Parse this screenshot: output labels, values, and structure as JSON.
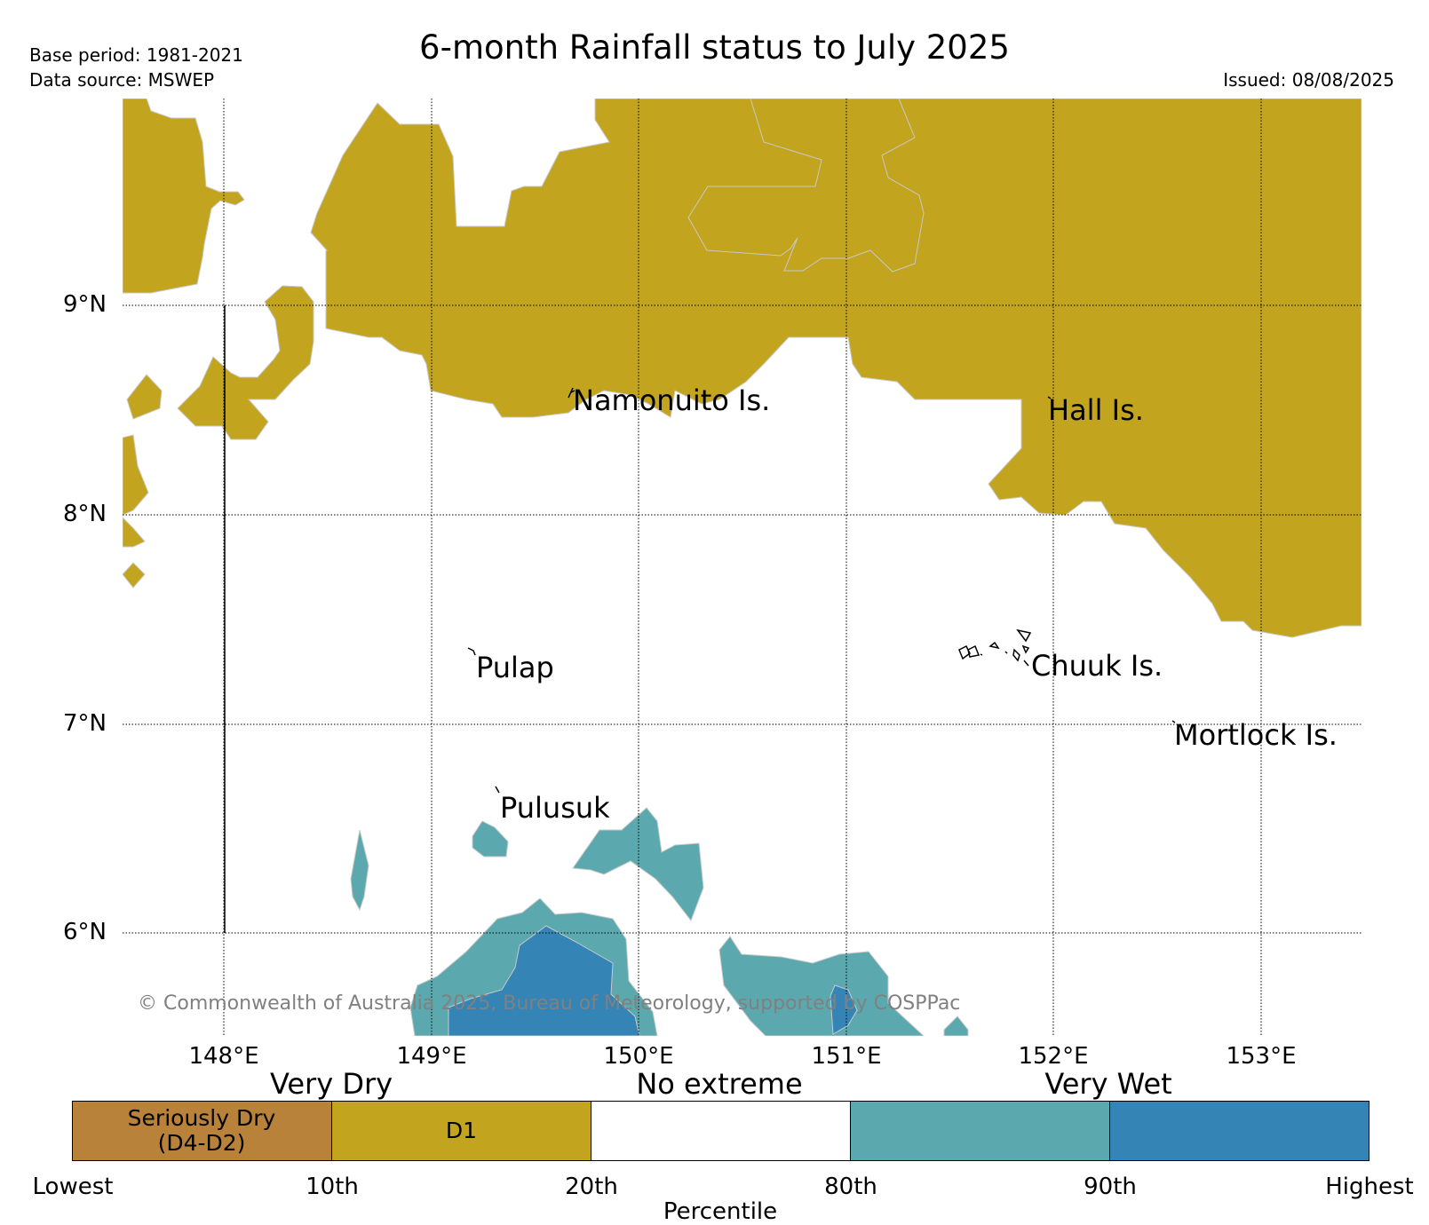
{
  "header": {
    "base_period": "Base period: 1981-2021",
    "data_source": "Data source: MSWEP",
    "title": "6-month Rainfall status to July 2025",
    "issued": "Issued: 08/08/2025"
  },
  "map": {
    "lat_labels": [
      "9°N",
      "8°N",
      "7°N",
      "6°N"
    ],
    "lon_labels": [
      "148°E",
      "149°E",
      "150°E",
      "151°E",
      "152°E",
      "153°E"
    ],
    "places": [
      "Namonuito Is.",
      "Hall Is.",
      "Pulap",
      "Chuuk Is.",
      "Mortlock Is.",
      "Pulusuk"
    ],
    "copyright": "© Commonwealth of Australia 2025, Bureau of Meteorology, supported by COSPPac",
    "colors": {
      "d1": "#c2a41e",
      "wet80": "#5ba9ae",
      "wet90": "#3584b6",
      "seriously_dry": "#b8823b",
      "no_extreme": "#ffffff"
    }
  },
  "legend": {
    "categories": [
      "Very Dry",
      "No extreme",
      "Very Wet"
    ],
    "swatches": [
      "Seriously Dry\n(D4-D2)",
      "D1",
      "",
      "",
      ""
    ],
    "ticks": [
      "Lowest",
      "10th",
      "20th",
      "80th",
      "90th",
      "Highest"
    ],
    "axis_label": "Percentile"
  }
}
